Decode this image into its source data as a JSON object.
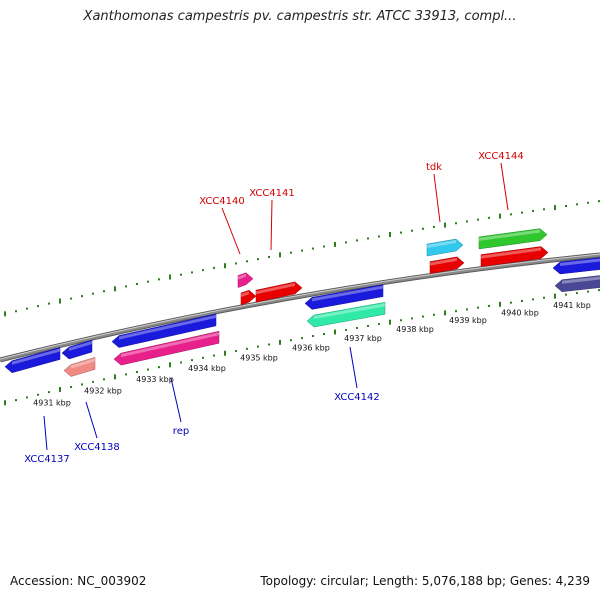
{
  "header": {
    "title": "Xanthomonas campestris pv. campestris str. ATCC 33913, compl..."
  },
  "footer": {
    "accession": "Accession: NC_003902",
    "summary": "Topology: circular; Length: 5,076,188 bp; Genes: 4,239"
  },
  "colors": {
    "backbone": "#8a8a8a",
    "ruler_ticks": "#2e7d1e",
    "forward_label": "#d00000",
    "reverse_label": "#0000c0"
  },
  "kbp_ticks": [
    "4931 kbp",
    "4932 kbp",
    "4933 kbp",
    "4934 kbp",
    "4935 kbp",
    "4936 kbp",
    "4937 kbp",
    "4938 kbp",
    "4939 kbp",
    "4940 kbp",
    "4941 kbp"
  ],
  "genes": [
    {
      "label": "XCC4137",
      "strand": "reverse",
      "color": "#1a1adc"
    },
    {
      "label": "XCC4138",
      "strand": "reverse",
      "color": "#1a1adc"
    },
    {
      "label": "",
      "strand": "reverse",
      "color": "#f08a84"
    },
    {
      "label": "",
      "strand": "reverse",
      "color": "#1a1adc"
    },
    {
      "label": "rep",
      "strand": "reverse",
      "color": "#e8208c"
    },
    {
      "label": "XCC4140",
      "strand": "forward",
      "color": "#e8208c"
    },
    {
      "label": "",
      "strand": "forward",
      "color": "#e80000"
    },
    {
      "label": "XCC4141",
      "strand": "forward",
      "color": "#e80000"
    },
    {
      "label": "",
      "strand": "reverse",
      "color": "#1a1adc"
    },
    {
      "label": "XCC4142",
      "strand": "reverse",
      "color": "#30e8a8"
    },
    {
      "label": "tdk",
      "strand": "forward",
      "color": "#30c8ec"
    },
    {
      "label": "",
      "strand": "forward",
      "color": "#e80000"
    },
    {
      "label": "XCC4144",
      "strand": "forward",
      "color": "#2ec82e"
    },
    {
      "label": "",
      "strand": "forward",
      "color": "#e80000"
    },
    {
      "label": "",
      "strand": "reverse",
      "color": "#1a1adc"
    },
    {
      "label": "",
      "strand": "reverse",
      "color": "#4a4894"
    }
  ]
}
